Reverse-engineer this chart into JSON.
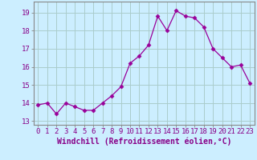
{
  "x": [
    0,
    1,
    2,
    3,
    4,
    5,
    6,
    7,
    8,
    9,
    10,
    11,
    12,
    13,
    14,
    15,
    16,
    17,
    18,
    19,
    20,
    21,
    22,
    23
  ],
  "y": [
    13.9,
    14.0,
    13.4,
    14.0,
    13.8,
    13.6,
    13.6,
    14.0,
    14.4,
    14.9,
    16.2,
    16.6,
    17.2,
    18.8,
    18.0,
    19.1,
    18.8,
    18.7,
    18.2,
    17.0,
    16.5,
    16.0,
    16.1,
    15.1
  ],
  "line_color": "#990099",
  "marker": "D",
  "marker_size": 2.5,
  "bg_color": "#cceeff",
  "grid_color": "#aacccc",
  "xlabel": "Windchill (Refroidissement éolien,°C)",
  "xlabel_fontsize": 7,
  "ylabel_ticks": [
    13,
    14,
    15,
    16,
    17,
    18,
    19
  ],
  "ylim": [
    12.8,
    19.6
  ],
  "xlim": [
    -0.5,
    23.5
  ],
  "tick_fontsize": 6.5,
  "label_color": "#880088"
}
